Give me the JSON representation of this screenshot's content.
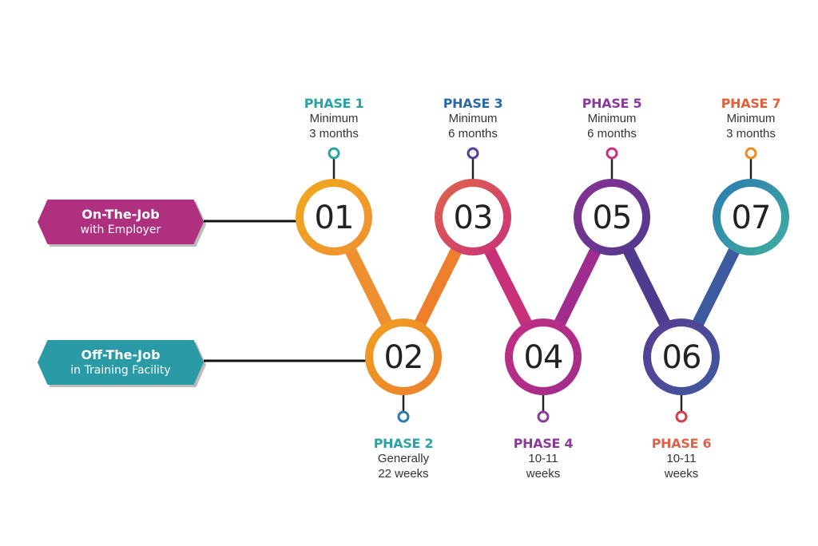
{
  "tracks": [
    {
      "title": "On-The-Job",
      "subtitle": "with Employer",
      "color": "#b03080"
    },
    {
      "title": "Off-The-Job",
      "subtitle": "in Training Facility",
      "color": "#2a9ba6"
    }
  ],
  "phases": [
    {
      "number": "01",
      "label": "PHASE 1",
      "line1": "Minimum",
      "line2": "3 months",
      "label_color": "#2aa3a8",
      "ring": [
        "#f2a91e",
        "#ee9030"
      ],
      "pin": "#2aa3a8"
    },
    {
      "number": "02",
      "label": "PHASE 2",
      "line1": "Generally",
      "line2": "22 weeks",
      "label_color": "#2aa3a8",
      "ring": [
        "#f0a020",
        "#ec7e2c"
      ],
      "pin": "#2a7ab0"
    },
    {
      "number": "03",
      "label": "PHASE 3",
      "line1": "Minimum",
      "line2": "6 months",
      "label_color": "#2a6aa8",
      "ring": [
        "#e2654a",
        "#c8307a"
      ],
      "pin": "#5a3a9a"
    },
    {
      "number": "04",
      "label": "PHASE 4",
      "line1": "10-11",
      "line2": "weeks",
      "label_color": "#8a3a9a",
      "ring": [
        "#c32f80",
        "#a02c8e"
      ],
      "pin": "#8a3a9a"
    },
    {
      "number": "05",
      "label": "PHASE 5",
      "line1": "Minimum",
      "line2": "6 months",
      "label_color": "#8a3a9a",
      "ring": [
        "#8a3092",
        "#4e3a8e"
      ],
      "pin": "#c83080"
    },
    {
      "number": "06",
      "label": "PHASE 6",
      "line1": "10-11",
      "line2": "weeks",
      "label_color": "#e0604a",
      "ring": [
        "#5a3a92",
        "#3d5a9e"
      ],
      "pin": "#d0404a"
    },
    {
      "number": "07",
      "label": "PHASE 7",
      "line1": "Minimum",
      "line2": "3 months",
      "label_color": "#e0603a",
      "ring": [
        "#2a7ab0",
        "#40b0a0"
      ],
      "pin": "#ee8a20"
    }
  ]
}
